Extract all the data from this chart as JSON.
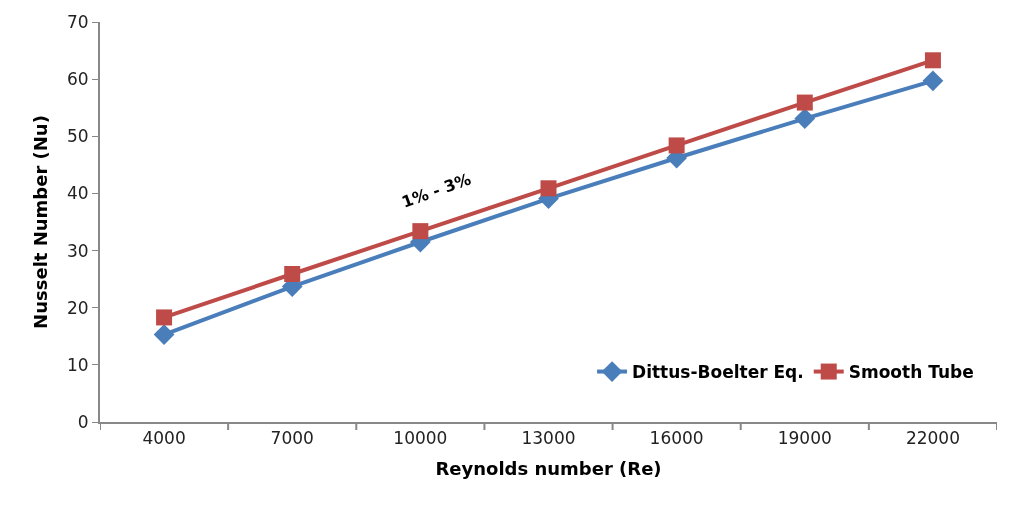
{
  "chart_data": {
    "type": "line",
    "xlabel": "Reynolds number (Re)",
    "ylabel": "Nusselt Number (Nu)",
    "categories": [
      "4000",
      "7000",
      "10000",
      "13000",
      "16000",
      "19000",
      "22000"
    ],
    "series": [
      {
        "name": "Dittus-Boelter Eq.",
        "color": "#4a7ebb",
        "marker": "diamond",
        "values": [
          15.3,
          23.7,
          31.5,
          39.1,
          46.2,
          53.1,
          59.7
        ]
      },
      {
        "name": "Smooth Tube",
        "color": "#be4b48",
        "marker": "square",
        "values": [
          18.3,
          25.9,
          33.4,
          40.9,
          48.4,
          55.9,
          63.3
        ]
      }
    ],
    "ylim": [
      0,
      70
    ],
    "yticks": [
      0,
      10,
      20,
      30,
      40,
      50,
      60,
      70
    ],
    "legend": "bottom right",
    "annotations": [
      "1% - 3%"
    ]
  }
}
